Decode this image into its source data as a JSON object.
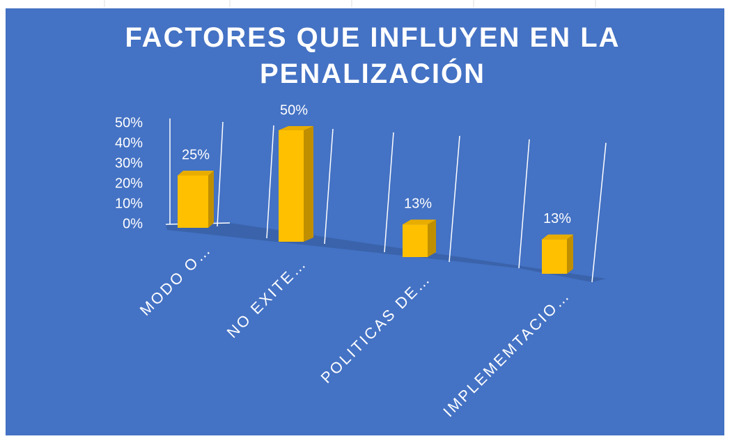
{
  "chart_data": {
    "type": "bar3d",
    "title": "FACTORES QUE INFLUYEN EN LA PENALIZACIÓN",
    "categories": [
      "MODO O…",
      "NO EXITE…",
      "POLITICAS DE…",
      "IMPLEMEMTACIO…"
    ],
    "values": [
      25,
      50,
      13,
      13
    ],
    "value_labels": [
      "25%",
      "50%",
      "13%",
      "13%"
    ],
    "color": "#ffc000",
    "ylim": [
      0,
      50
    ],
    "yticks": [
      {
        "value": 0,
        "label": "0%"
      },
      {
        "value": 10,
        "label": "10%"
      },
      {
        "value": 20,
        "label": "20%"
      },
      {
        "value": 30,
        "label": "30%"
      },
      {
        "value": 40,
        "label": "40%"
      },
      {
        "value": 50,
        "label": "50%"
      }
    ]
  }
}
